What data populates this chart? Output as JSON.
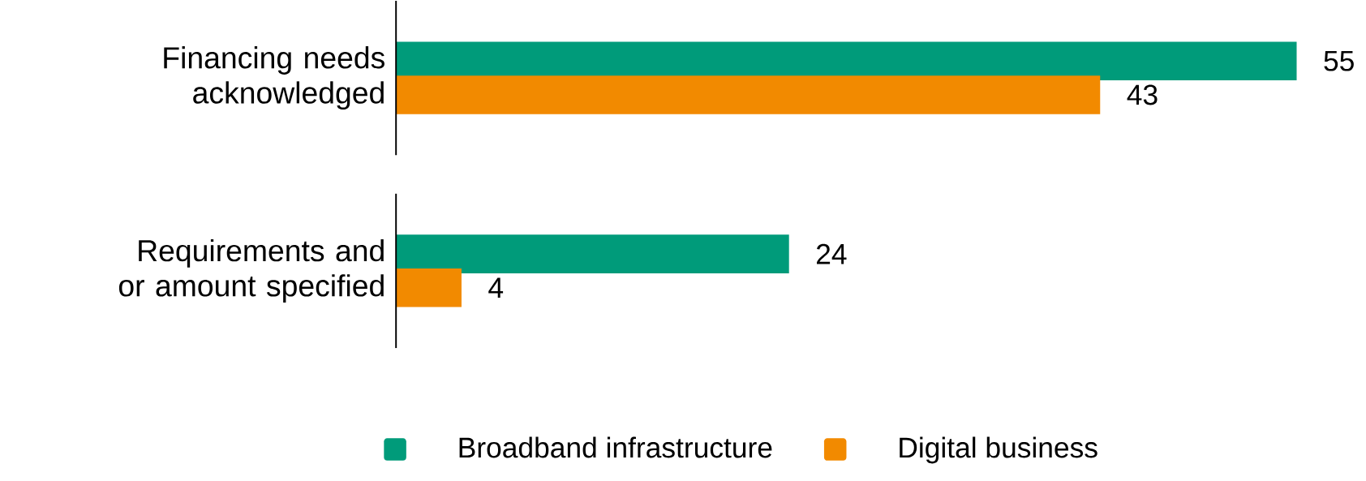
{
  "chart_data": {
    "type": "bar",
    "orientation": "horizontal",
    "categories": [
      "Financing needs acknowledged",
      "Requirements and or amount specified"
    ],
    "series": [
      {
        "name": "Broadband infrastructure",
        "color": "#009b7a",
        "values": [
          55,
          24
        ]
      },
      {
        "name": "Digital business",
        "color": "#f28a00",
        "values": [
          43,
          4
        ]
      }
    ],
    "data_labels": true,
    "legend": "bottom"
  }
}
